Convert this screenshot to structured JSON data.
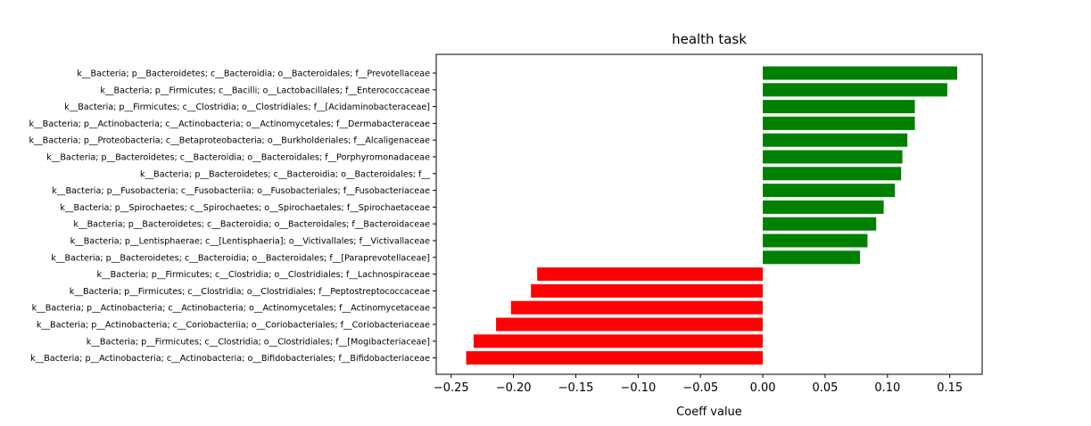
{
  "chart_data": {
    "type": "bar",
    "orientation": "horizontal",
    "title": "health task",
    "xlabel": "Coeff value",
    "ylabel": "",
    "xlim": [
      -0.262,
      0.176
    ],
    "xticks": [
      -0.25,
      -0.2,
      -0.15,
      -0.1,
      -0.05,
      0.0,
      0.05,
      0.1,
      0.15
    ],
    "xtick_labels": [
      "−0.25",
      "−0.20",
      "−0.15",
      "−0.10",
      "−0.05",
      "0.00",
      "0.05",
      "0.10",
      "0.15"
    ],
    "grid": false,
    "positive_color": "#008000",
    "negative_color": "#ff0000",
    "categories": [
      "k__Bacteria; p__Bacteroidetes; c__Bacteroidia; o__Bacteroidales; f__Prevotellaceae",
      "k__Bacteria; p__Firmicutes; c__Bacilli; o__Lactobacillales; f__Enterococcaceae",
      "k__Bacteria; p__Firmicutes; c__Clostridia; o__Clostridiales; f__[Acidaminobacteraceae]",
      "k__Bacteria; p__Actinobacteria; c__Actinobacteria; o__Actinomycetales; f__Dermabacteraceae",
      "k__Bacteria; p__Proteobacteria; c__Betaproteobacteria; o__Burkholderiales; f__Alcaligenaceae",
      "k__Bacteria; p__Bacteroidetes; c__Bacteroidia; o__Bacteroidales; f__Porphyromonadaceae",
      "k__Bacteria; p__Bacteroidetes; c__Bacteroidia; o__Bacteroidales; f__",
      "k__Bacteria; p__Fusobacteria; c__Fusobacteriia; o__Fusobacteriales; f__Fusobacteriaceae",
      "k__Bacteria; p__Spirochaetes; c__Spirochaetes; o__Spirochaetales; f__Spirochaetaceae",
      "k__Bacteria; p__Bacteroidetes; c__Bacteroidia; o__Bacteroidales; f__Bacteroidaceae",
      "k__Bacteria; p__Lentisphaerae; c__[Lentisphaeria]; o__Victivallales; f__Victivallaceae",
      "k__Bacteria; p__Bacteroidetes; c__Bacteroidia; o__Bacteroidales; f__[Paraprevotellaceae]",
      "k__Bacteria; p__Firmicutes; c__Clostridia; o__Clostridiales; f__Lachnospiraceae",
      "k__Bacteria; p__Firmicutes; c__Clostridia; o__Clostridiales; f__Peptostreptococcaceae",
      "k__Bacteria; p__Actinobacteria; c__Actinobacteria; o__Actinomycetales; f__Actinomycetaceae",
      "k__Bacteria; p__Actinobacteria; c__Coriobacteriia; o__Coriobacteriales; f__Coriobacteriaceae",
      "k__Bacteria; p__Firmicutes; c__Clostridia; o__Clostridiales; f__[Mogibacteriaceae]",
      "k__Bacteria; p__Actinobacteria; c__Actinobacteria; o__Bifidobacteriales; f__Bifidobacteriaceae"
    ],
    "values": [
      0.156,
      0.148,
      0.122,
      0.122,
      0.116,
      0.112,
      0.111,
      0.106,
      0.097,
      0.091,
      0.084,
      0.078,
      -0.181,
      -0.186,
      -0.202,
      -0.214,
      -0.232,
      -0.238
    ]
  }
}
